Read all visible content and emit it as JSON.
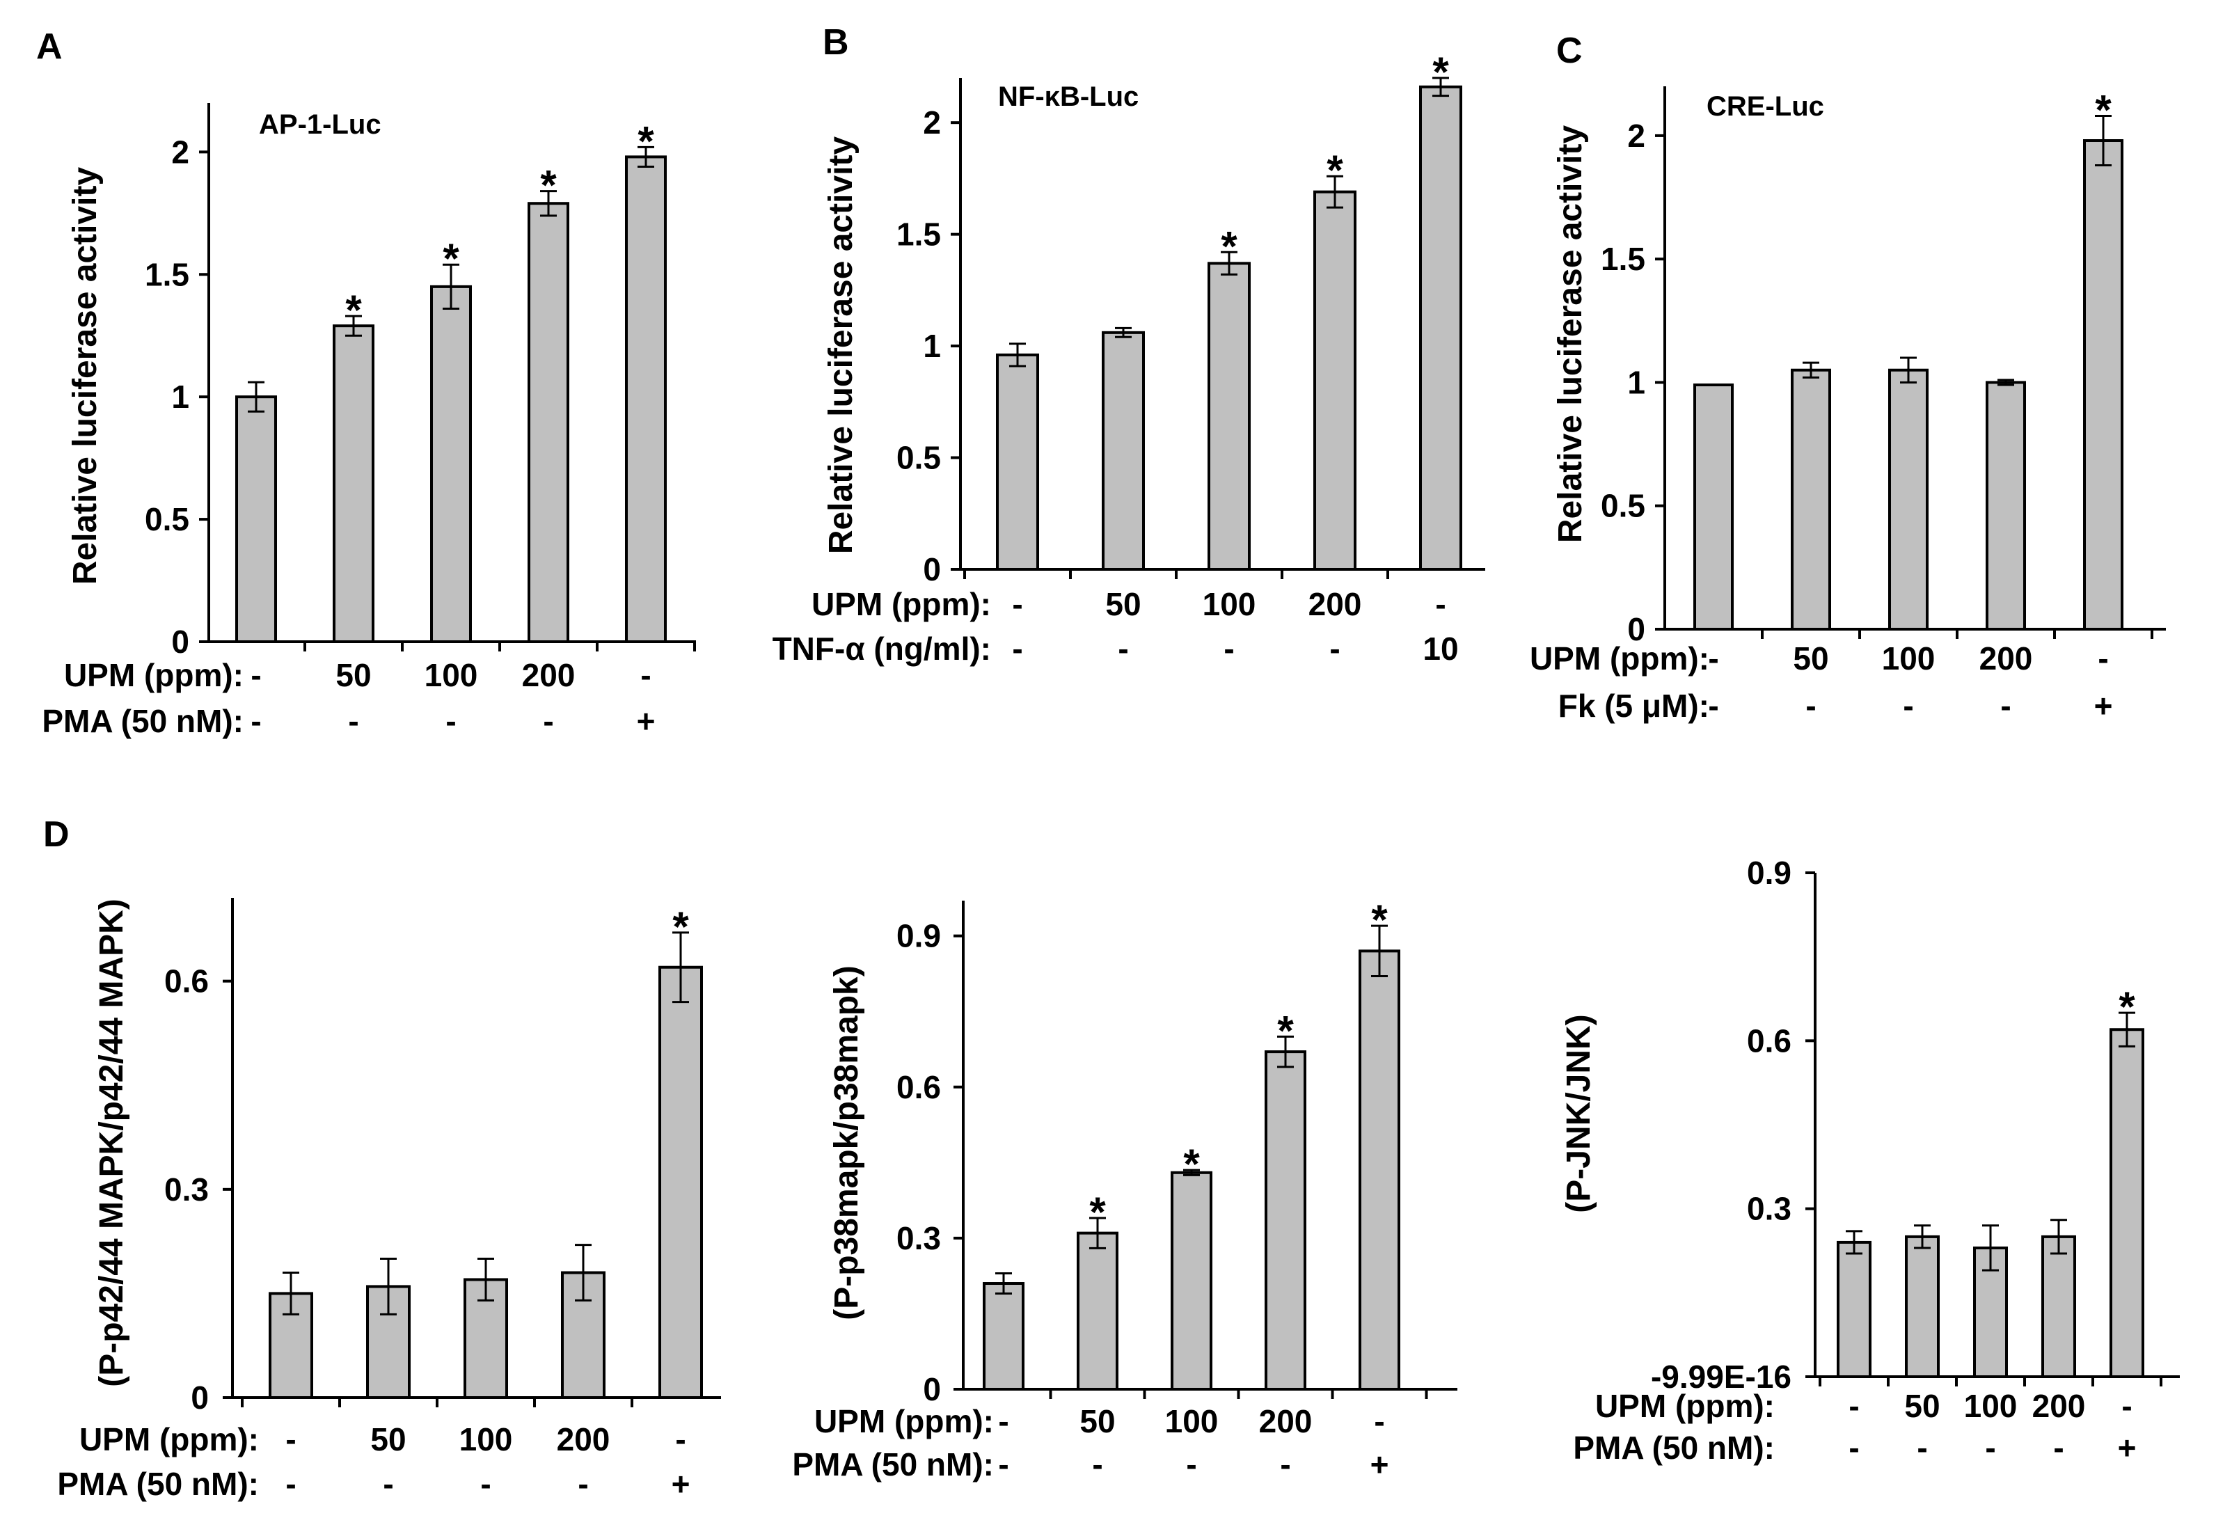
{
  "chart_data": [
    {
      "panel": "A",
      "type": "bar",
      "inner_label": "AP-1-Luc",
      "ylabel": "Relative luciferase activity",
      "ylim": [
        0,
        2.2
      ],
      "yticks": [
        "0",
        "0.5",
        "1",
        "1.5",
        "2"
      ],
      "ytick_values": [
        0,
        0.5,
        1,
        1.5,
        2
      ],
      "values": [
        1.0,
        1.29,
        1.45,
        1.79,
        1.98
      ],
      "errors": [
        0.06,
        0.04,
        0.09,
        0.05,
        0.04
      ],
      "significant": [
        false,
        true,
        true,
        true,
        true
      ],
      "star": "*",
      "conditions": [
        {
          "label": "UPM (ppm):",
          "values": [
            "-",
            "50",
            "100",
            "200",
            "-"
          ]
        },
        {
          "label": "PMA (50 nM):",
          "values": [
            "-",
            "-",
            "-",
            "-",
            "+"
          ]
        }
      ]
    },
    {
      "panel": "B",
      "type": "bar",
      "inner_label": "NF-κB-Luc",
      "ylabel": "Relative luciferase activity",
      "ylim": [
        0,
        2.2
      ],
      "yticks": [
        "0",
        "0.5",
        "1",
        "1.5",
        "2"
      ],
      "ytick_values": [
        0,
        0.5,
        1,
        1.5,
        2
      ],
      "values": [
        0.96,
        1.06,
        1.37,
        1.69,
        2.16
      ],
      "errors": [
        0.05,
        0.02,
        0.05,
        0.07,
        0.04
      ],
      "significant": [
        false,
        false,
        true,
        true,
        true
      ],
      "star": "*",
      "conditions": [
        {
          "label": "UPM (ppm):",
          "values": [
            "-",
            "50",
            "100",
            "200",
            "-"
          ]
        },
        {
          "label": "TNF-α (ng/ml):",
          "values": [
            "-",
            "-",
            "-",
            "-",
            "10"
          ]
        }
      ]
    },
    {
      "panel": "C",
      "type": "bar",
      "inner_label": "CRE-Luc",
      "ylabel": "Relative luciferase activity",
      "ylim": [
        0,
        2.2
      ],
      "yticks": [
        "0",
        "0.5",
        "1",
        "1.5",
        "2"
      ],
      "ytick_values": [
        0,
        0.5,
        1,
        1.5,
        2
      ],
      "values": [
        0.99,
        1.05,
        1.05,
        1.0,
        1.98
      ],
      "errors": [
        0.0,
        0.03,
        0.05,
        0.01,
        0.1
      ],
      "significant": [
        false,
        false,
        false,
        false,
        true
      ],
      "star": "*",
      "conditions": [
        {
          "label": "UPM (ppm):",
          "values": [
            "-",
            "50",
            "100",
            "200",
            "-"
          ]
        },
        {
          "label": "Fk (5 μM):",
          "values": [
            "-",
            "-",
            "-",
            "-",
            "+"
          ]
        }
      ]
    },
    {
      "panel": "D",
      "type": "bar",
      "inner_label": "",
      "ylabel": "(P-p42/44 MAPK/p42/44 MAPK)",
      "ylim": [
        0,
        0.72
      ],
      "yticks": [
        "0",
        "0.3",
        "0.6"
      ],
      "ytick_values": [
        0,
        0.3,
        0.6
      ],
      "values": [
        0.15,
        0.16,
        0.17,
        0.18,
        0.62
      ],
      "errors": [
        0.03,
        0.04,
        0.03,
        0.04,
        0.05
      ],
      "significant": [
        false,
        false,
        false,
        false,
        true
      ],
      "star": "*",
      "conditions": [
        {
          "label": "UPM (ppm):",
          "values": [
            "-",
            "50",
            "100",
            "200",
            "-"
          ]
        },
        {
          "label": "PMA (50 nM):",
          "values": [
            "-",
            "-",
            "-",
            "-",
            "+"
          ]
        }
      ]
    },
    {
      "panel": "",
      "type": "bar",
      "inner_label": "",
      "ylabel": "(P-p38mapk/p38mapk)",
      "ylim": [
        0,
        0.97
      ],
      "yticks": [
        "0",
        "0.3",
        "0.6",
        "0.9"
      ],
      "ytick_values": [
        0,
        0.3,
        0.6,
        0.9
      ],
      "values": [
        0.21,
        0.31,
        0.43,
        0.67,
        0.87
      ],
      "errors": [
        0.02,
        0.03,
        0.005,
        0.03,
        0.05
      ],
      "significant": [
        false,
        true,
        true,
        true,
        true
      ],
      "star": "*",
      "conditions": [
        {
          "label": "UPM (ppm):",
          "values": [
            "-",
            "50",
            "100",
            "200",
            "-"
          ]
        },
        {
          "label": "PMA (50 nM):",
          "values": [
            "-",
            "-",
            "-",
            "-",
            "+"
          ]
        }
      ]
    },
    {
      "panel": "",
      "type": "bar",
      "inner_label": "",
      "ylabel": "(P-JNK/JNK)",
      "ylim": [
        0,
        0.9
      ],
      "yticks": [
        "-9.99E-16",
        "0.3",
        "0.6",
        "0.9"
      ],
      "ytick_values": [
        0,
        0.3,
        0.6,
        0.9
      ],
      "values": [
        0.24,
        0.25,
        0.23,
        0.25,
        0.62
      ],
      "errors": [
        0.02,
        0.02,
        0.04,
        0.03,
        0.03
      ],
      "significant": [
        false,
        false,
        false,
        false,
        true
      ],
      "star": "*",
      "conditions": [
        {
          "label": "UPM (ppm):",
          "values": [
            "-",
            "50",
            "100",
            "200",
            "-"
          ]
        },
        {
          "label": "PMA (50 nM):",
          "values": [
            "-",
            "-",
            "-",
            "-",
            "+"
          ]
        }
      ]
    }
  ],
  "colors": {
    "bar_fill": "#c0c0c0",
    "bar_stroke": "#000000",
    "axis": "#000000"
  }
}
